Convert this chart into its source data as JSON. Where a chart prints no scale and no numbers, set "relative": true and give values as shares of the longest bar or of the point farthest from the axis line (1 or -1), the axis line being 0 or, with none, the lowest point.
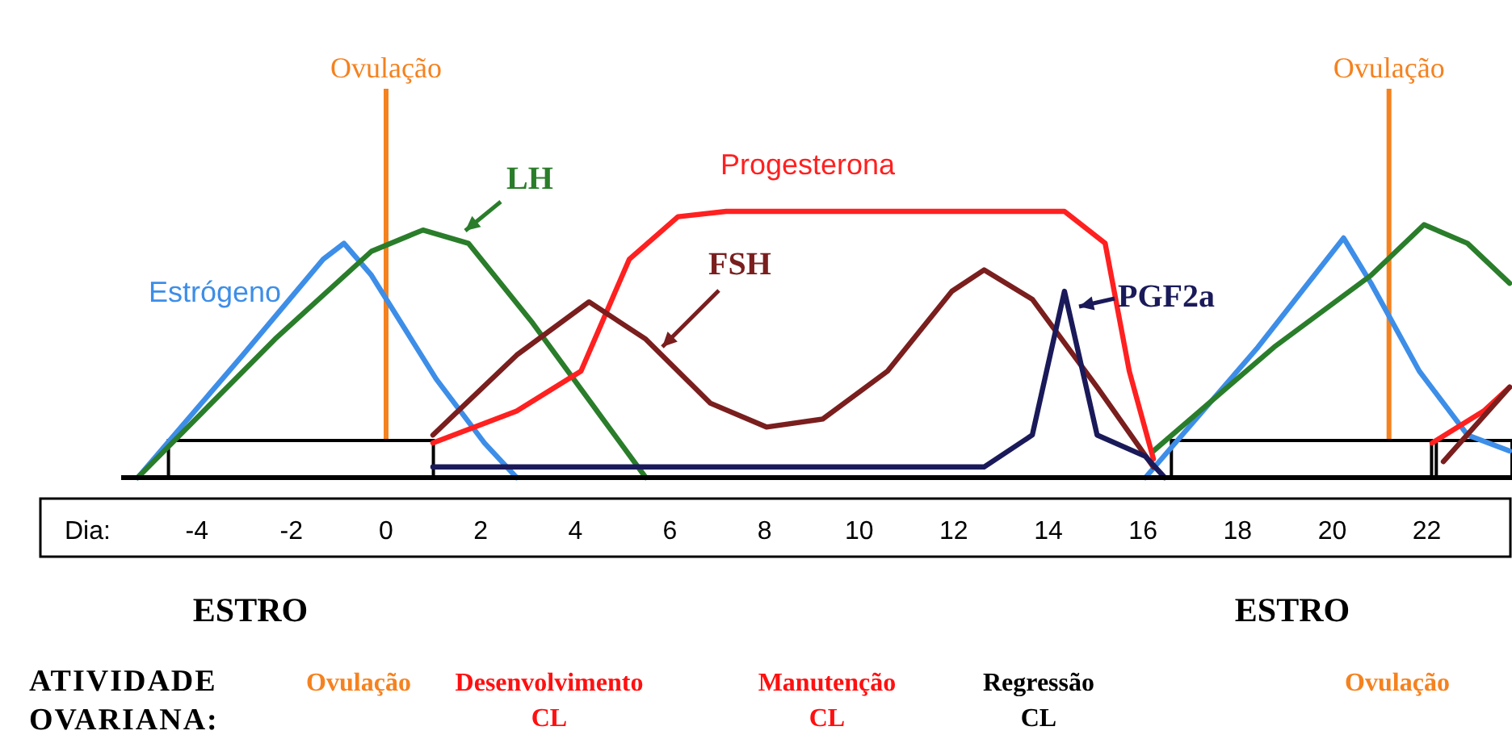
{
  "chart_data": {
    "type": "line",
    "relative": true,
    "xlabel": "Dia:",
    "xlim": [
      -5.6,
      23.8
    ],
    "xticks": [
      -4,
      -2,
      0,
      2,
      4,
      6,
      8,
      10,
      12,
      14,
      16,
      18,
      20,
      22
    ],
    "series": [
      {
        "name": "Estrógeno",
        "color": "#3d8ee8",
        "x": [
          -5.25,
          -3.03,
          -1.33,
          -0.89,
          -0.31,
          1.06,
          2.08,
          2.76,
          9,
          16.05,
          18.43,
          20.24,
          20.82,
          21.84,
          22.86,
          23.75
        ],
        "values": [
          0,
          0.46,
          0.82,
          0.88,
          0.76,
          0.37,
          0.13,
          0,
          null,
          0,
          0.49,
          0.9,
          0.73,
          0.4,
          0.16,
          0.1
        ]
      },
      {
        "name": "LH",
        "color": "#2a7d2a",
        "x": [
          -5.25,
          -2.35,
          -0.31,
          0.78,
          1.74,
          3.1,
          4.46,
          5.49,
          10,
          16.22,
          18.77,
          20.82,
          21.94,
          22.86,
          23.75
        ],
        "values": [
          0,
          0.52,
          0.85,
          0.93,
          0.88,
          0.58,
          0.25,
          0,
          null,
          0.1,
          0.49,
          0.76,
          0.95,
          0.88,
          0.73
        ]
      },
      {
        "name": "Progesterona",
        "color": "#ff2020",
        "x": [
          0.99,
          2.76,
          4.12,
          5.14,
          6.17,
          7.19,
          14.34,
          15.2,
          15.71,
          16.22,
          19,
          22.11,
          23.2,
          23.75
        ],
        "values": [
          0.13,
          0.25,
          0.4,
          0.82,
          0.98,
          1,
          1,
          0.88,
          0.4,
          0.07,
          null,
          0.13,
          0.25,
          0.34
        ]
      },
      {
        "name": "FSH",
        "color": "#7a1e1e",
        "x": [
          0.99,
          2.76,
          4.29,
          5.49,
          6.85,
          8.04,
          9.23,
          10.6,
          11.96,
          12.64,
          13.66,
          15.03,
          16.22,
          19,
          22.35,
          23.75
        ],
        "values": [
          0.16,
          0.46,
          0.66,
          0.52,
          0.28,
          0.19,
          0.22,
          0.4,
          0.7,
          0.78,
          0.67,
          0.34,
          0.04,
          null,
          0.06,
          0.34
        ]
      },
      {
        "name": "PGF2a",
        "color": "#1a1a5a",
        "x": [
          0.99,
          12.64,
          13.66,
          14.34,
          15.03,
          16.05,
          16.46
        ],
        "values": [
          0.04,
          0.04,
          0.16,
          0.7,
          0.16,
          0.08,
          0
        ]
      }
    ],
    "ref_lines": [
      {
        "axis": "x",
        "value": 0,
        "label": "Ovulação",
        "color": "#f5821f"
      },
      {
        "axis": "x",
        "value": 21.2,
        "label": "Ovulação",
        "color": "#f5821f"
      }
    ],
    "bands": [
      {
        "axis": "x",
        "from": -4.6,
        "to": 1,
        "color": "#ffffff"
      },
      {
        "axis": "x",
        "from": 16.6,
        "to": 22.1,
        "color": "#ffffff"
      },
      {
        "axis": "x",
        "from": 22.2,
        "to": 23.8,
        "color": "#ffffff"
      }
    ],
    "annotations": [
      "ATIVIDADE\nOVARIANA:",
      "ESTRO",
      "ESTRO",
      "Ovulação",
      "Desenvolvimento\nCL",
      "Manutenção\nCL",
      "Regressão\nCL",
      "Ovulação"
    ]
  }
}
